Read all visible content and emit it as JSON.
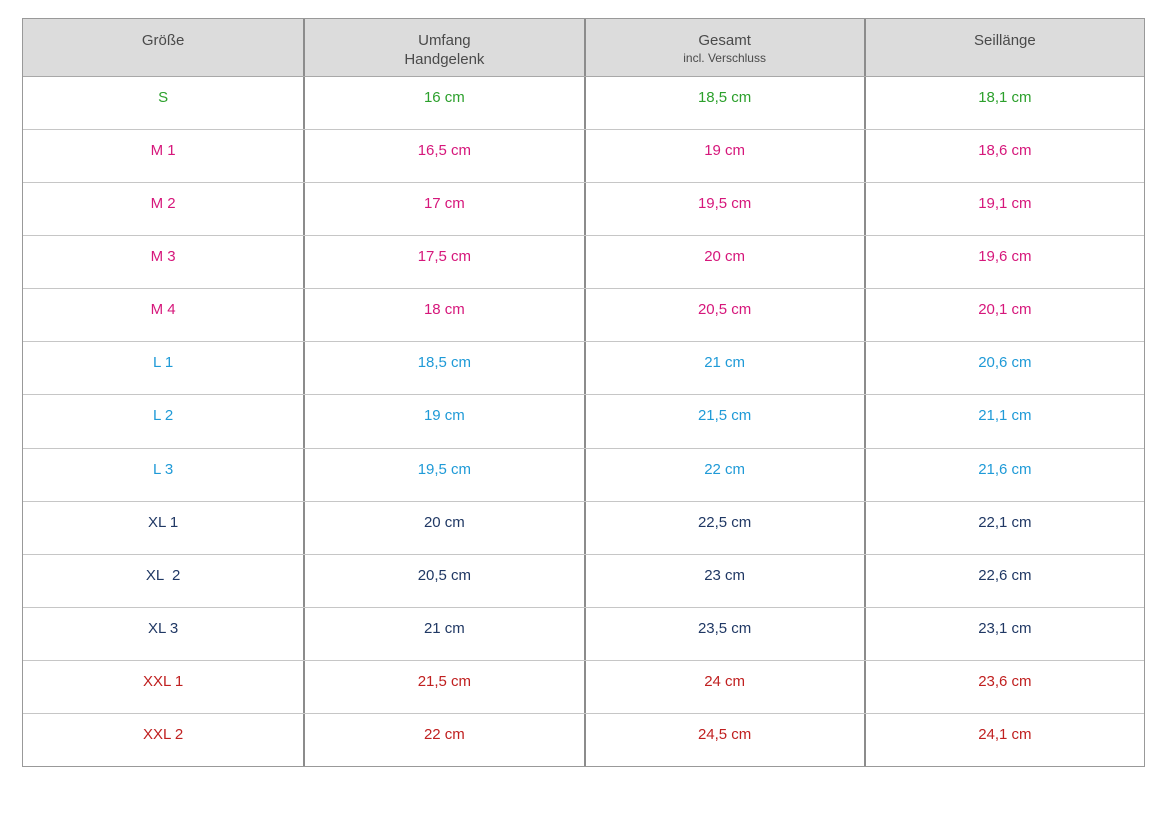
{
  "table": {
    "header": {
      "col1": "Größe",
      "col2_line1": "Umfang",
      "col2_line2": "Handgelenk",
      "col3_line1": "Gesamt",
      "col3_line2": "incl. Verschluss",
      "col4": "Seillänge"
    },
    "rows": [
      {
        "size": "S",
        "umfang": "16 cm",
        "gesamt": "18,5 cm",
        "seillaenge": "18,1 cm",
        "group": "S",
        "color": "#2ca02c"
      },
      {
        "size": "M 1",
        "umfang": "16,5 cm",
        "gesamt": "19 cm",
        "seillaenge": "18,6 cm",
        "group": "M",
        "color": "#d6177b"
      },
      {
        "size": "M 2",
        "umfang": "17 cm",
        "gesamt": "19,5 cm",
        "seillaenge": "19,1 cm",
        "group": "M",
        "color": "#d6177b"
      },
      {
        "size": "M 3",
        "umfang": "17,5 cm",
        "gesamt": "20 cm",
        "seillaenge": "19,6 cm",
        "group": "M",
        "color": "#d6177b"
      },
      {
        "size": "M 4",
        "umfang": "18 cm",
        "gesamt": "20,5 cm",
        "seillaenge": "20,1 cm",
        "group": "M",
        "color": "#d6177b"
      },
      {
        "size": "L 1",
        "umfang": "18,5 cm",
        "gesamt": "21 cm",
        "seillaenge": "20,6 cm",
        "group": "L",
        "color": "#1f9ad7"
      },
      {
        "size": "L 2",
        "umfang": "19 cm",
        "gesamt": "21,5 cm",
        "seillaenge": "21,1 cm",
        "group": "L",
        "color": "#1f9ad7"
      },
      {
        "size": "L 3",
        "umfang": "19,5 cm",
        "gesamt": "22 cm",
        "seillaenge": "21,6 cm",
        "group": "L",
        "color": "#1f9ad7"
      },
      {
        "size": "XL 1",
        "umfang": "20 cm",
        "gesamt": "22,5 cm",
        "seillaenge": "22,1 cm",
        "group": "XL",
        "color": "#203864"
      },
      {
        "size": "XL  2",
        "umfang": "20,5 cm",
        "gesamt": "23 cm",
        "seillaenge": "22,6 cm",
        "group": "XL",
        "color": "#203864"
      },
      {
        "size": "XL 3",
        "umfang": "21 cm",
        "gesamt": "23,5 cm",
        "seillaenge": "23,1 cm",
        "group": "XL",
        "color": "#203864"
      },
      {
        "size": "XXL 1",
        "umfang": "21,5 cm",
        "gesamt": "24 cm",
        "seillaenge": "23,6 cm",
        "group": "XXL",
        "color": "#c02020"
      },
      {
        "size": "XXL 2",
        "umfang": "22 cm",
        "gesamt": "24,5 cm",
        "seillaenge": "24,1 cm",
        "group": "XXL",
        "color": "#c02020"
      }
    ],
    "colors": {
      "header_background": "#dcdcdc",
      "header_text": "#4a4a4a",
      "group_S": "#2ca02c",
      "group_M": "#d6177b",
      "group_L": "#1f9ad7",
      "group_XL": "#203864",
      "group_XXL": "#c02020",
      "outer_border": "#999999",
      "column_divider": "#8c8c8c",
      "row_divider": "#c6c6c6"
    }
  }
}
